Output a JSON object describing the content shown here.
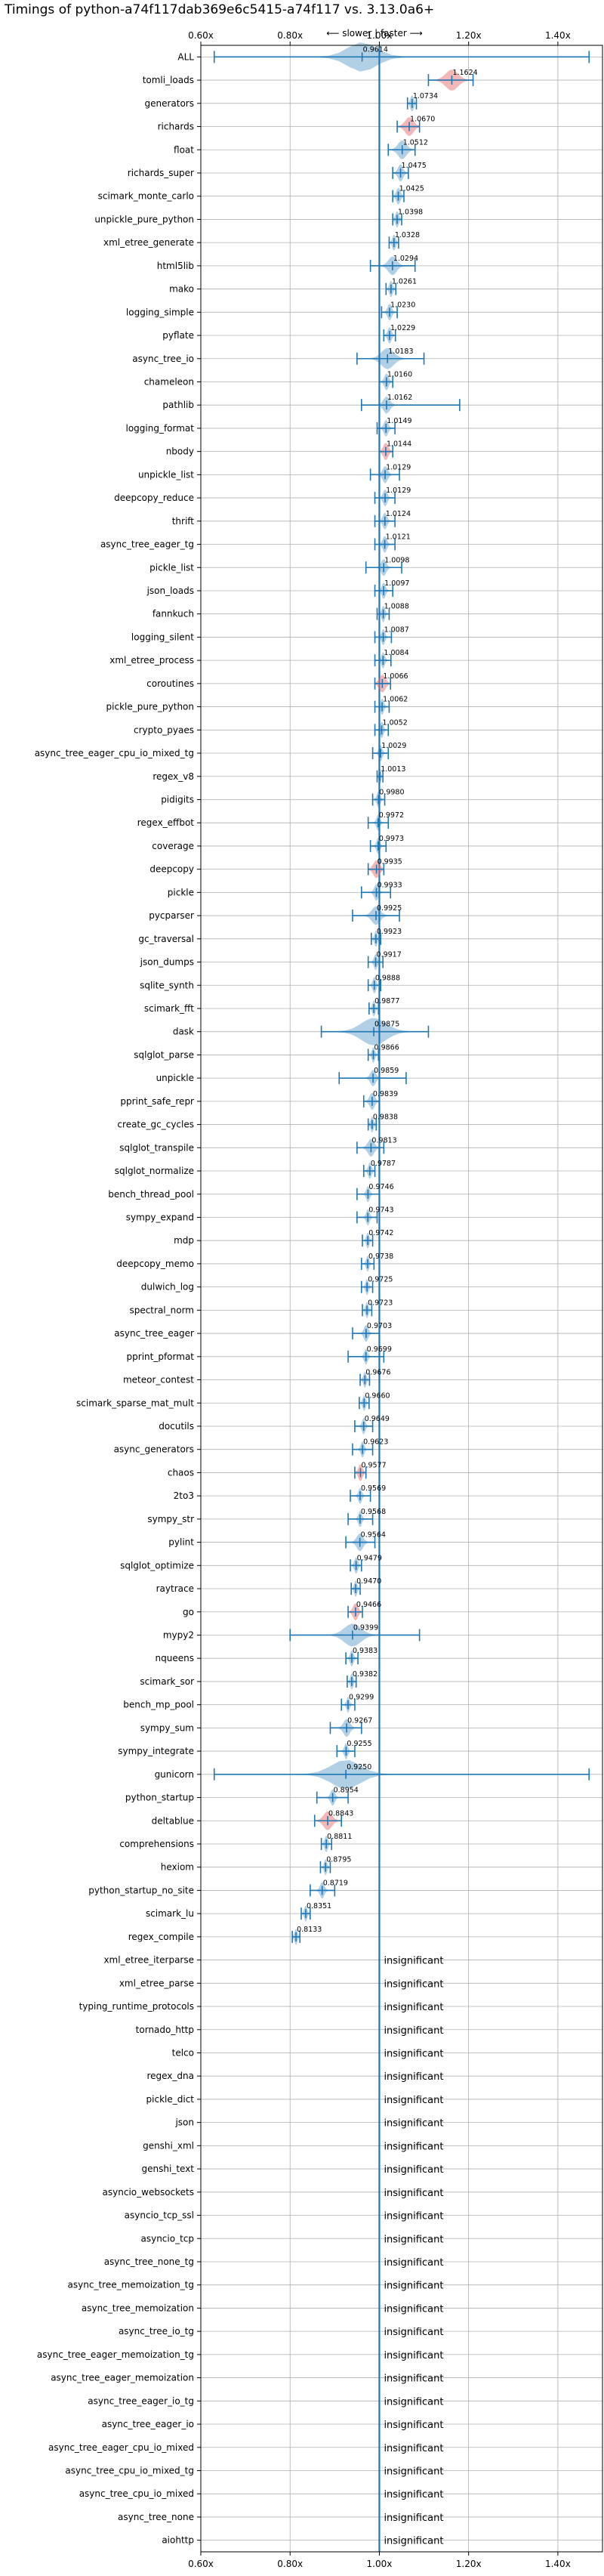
{
  "chart_data": {
    "type": "violin",
    "title": "Timings of python-a74f117dab369e6c5415-a74f117 vs. 3.13.0a6+",
    "direction_label": "⟵ slower | faster ⟶",
    "xlim": [
      0.6,
      1.5
    ],
    "xticks": [
      0.6,
      0.8,
      1.0,
      1.2,
      1.4
    ],
    "xtick_labels": [
      "0.60x",
      "0.80x",
      "1.00x",
      "1.20x",
      "1.40x"
    ],
    "grid": true,
    "insignificant_label": "insignificant",
    "colors": {
      "violin": "#1f77b4",
      "highlight": "#e8706f",
      "grid": "#b0b0b0",
      "baseline": "#1f77b4"
    },
    "benchmarks": [
      {
        "name": "ALL",
        "mean": 0.9614,
        "min": 0.63,
        "max": 1.47,
        "spread": 0.07,
        "color": "blue"
      },
      {
        "name": "tomli_loads",
        "mean": 1.1624,
        "min": 1.11,
        "max": 1.21,
        "spread": 0.03,
        "color": "red"
      },
      {
        "name": "generators",
        "mean": 1.0734,
        "min": 1.063,
        "max": 1.083,
        "spread": 0.008,
        "color": "blue"
      },
      {
        "name": "richards",
        "mean": 1.067,
        "min": 1.04,
        "max": 1.09,
        "spread": 0.02,
        "color": "red"
      },
      {
        "name": "float",
        "mean": 1.0512,
        "min": 1.02,
        "max": 1.08,
        "spread": 0.02,
        "color": "blue"
      },
      {
        "name": "richards_super",
        "mean": 1.0475,
        "min": 1.03,
        "max": 1.065,
        "spread": 0.012,
        "color": "blue"
      },
      {
        "name": "scimark_monte_carlo",
        "mean": 1.0425,
        "min": 1.03,
        "max": 1.055,
        "spread": 0.01,
        "color": "blue"
      },
      {
        "name": "unpickle_pure_python",
        "mean": 1.0398,
        "min": 1.03,
        "max": 1.05,
        "spread": 0.008,
        "color": "blue"
      },
      {
        "name": "xml_etree_generate",
        "mean": 1.0328,
        "min": 1.022,
        "max": 1.043,
        "spread": 0.008,
        "color": "blue"
      },
      {
        "name": "html5lib",
        "mean": 1.0294,
        "min": 0.98,
        "max": 1.08,
        "spread": 0.02,
        "color": "blue"
      },
      {
        "name": "mako",
        "mean": 1.0261,
        "min": 1.015,
        "max": 1.037,
        "spread": 0.008,
        "color": "blue"
      },
      {
        "name": "logging_simple",
        "mean": 1.023,
        "min": 1.005,
        "max": 1.04,
        "spread": 0.01,
        "color": "blue"
      },
      {
        "name": "pyflate",
        "mean": 1.0229,
        "min": 1.01,
        "max": 1.036,
        "spread": 0.009,
        "color": "blue"
      },
      {
        "name": "async_tree_io",
        "mean": 1.0183,
        "min": 0.95,
        "max": 1.1,
        "spread": 0.03,
        "color": "blue"
      },
      {
        "name": "chameleon",
        "mean": 1.016,
        "min": 1.0,
        "max": 1.03,
        "spread": 0.01,
        "color": "blue"
      },
      {
        "name": "pathlib",
        "mean": 1.0162,
        "min": 0.96,
        "max": 1.18,
        "spread": 0.015,
        "color": "blue"
      },
      {
        "name": "logging_format",
        "mean": 1.0149,
        "min": 0.995,
        "max": 1.035,
        "spread": 0.01,
        "color": "blue"
      },
      {
        "name": "nbody",
        "mean": 1.0144,
        "min": 1.0,
        "max": 1.03,
        "spread": 0.012,
        "color": "red"
      },
      {
        "name": "unpickle_list",
        "mean": 1.0129,
        "min": 0.98,
        "max": 1.045,
        "spread": 0.012,
        "color": "blue"
      },
      {
        "name": "deepcopy_reduce",
        "mean": 1.0129,
        "min": 0.99,
        "max": 1.035,
        "spread": 0.01,
        "color": "blue"
      },
      {
        "name": "thrift",
        "mean": 1.0124,
        "min": 0.99,
        "max": 1.035,
        "spread": 0.01,
        "color": "blue"
      },
      {
        "name": "async_tree_eager_tg",
        "mean": 1.0121,
        "min": 0.99,
        "max": 1.035,
        "spread": 0.01,
        "color": "blue"
      },
      {
        "name": "pickle_list",
        "mean": 1.0098,
        "min": 0.97,
        "max": 1.05,
        "spread": 0.012,
        "color": "blue"
      },
      {
        "name": "json_loads",
        "mean": 1.0097,
        "min": 0.99,
        "max": 1.03,
        "spread": 0.009,
        "color": "blue"
      },
      {
        "name": "fannkuch",
        "mean": 1.0088,
        "min": 0.995,
        "max": 1.022,
        "spread": 0.008,
        "color": "blue"
      },
      {
        "name": "logging_silent",
        "mean": 1.0087,
        "min": 0.99,
        "max": 1.027,
        "spread": 0.008,
        "color": "blue"
      },
      {
        "name": "xml_etree_process",
        "mean": 1.0084,
        "min": 0.99,
        "max": 1.026,
        "spread": 0.008,
        "color": "blue"
      },
      {
        "name": "coroutines",
        "mean": 1.0066,
        "min": 0.99,
        "max": 1.025,
        "spread": 0.015,
        "color": "red"
      },
      {
        "name": "pickle_pure_python",
        "mean": 1.0062,
        "min": 0.99,
        "max": 1.022,
        "spread": 0.008,
        "color": "blue"
      },
      {
        "name": "crypto_pyaes",
        "mean": 1.0052,
        "min": 0.99,
        "max": 1.02,
        "spread": 0.008,
        "color": "blue"
      },
      {
        "name": "async_tree_eager_cpu_io_mixed_tg",
        "mean": 1.0029,
        "min": 0.985,
        "max": 1.02,
        "spread": 0.008,
        "color": "blue"
      },
      {
        "name": "regex_v8",
        "mean": 1.0013,
        "min": 0.995,
        "max": 1.008,
        "spread": 0.005,
        "color": "blue"
      },
      {
        "name": "pidigits",
        "mean": 0.998,
        "min": 0.985,
        "max": 1.012,
        "spread": 0.008,
        "color": "blue"
      },
      {
        "name": "regex_effbot",
        "mean": 0.9972,
        "min": 0.975,
        "max": 1.02,
        "spread": 0.008,
        "color": "blue"
      },
      {
        "name": "coverage",
        "mean": 0.9973,
        "min": 0.98,
        "max": 1.015,
        "spread": 0.008,
        "color": "blue"
      },
      {
        "name": "deepcopy",
        "mean": 0.9935,
        "min": 0.975,
        "max": 1.01,
        "spread": 0.015,
        "color": "red"
      },
      {
        "name": "pickle",
        "mean": 0.9933,
        "min": 0.96,
        "max": 1.025,
        "spread": 0.01,
        "color": "blue"
      },
      {
        "name": "pycparser",
        "mean": 0.9925,
        "min": 0.94,
        "max": 1.045,
        "spread": 0.02,
        "color": "blue"
      },
      {
        "name": "gc_traversal",
        "mean": 0.9923,
        "min": 0.982,
        "max": 1.003,
        "spread": 0.007,
        "color": "blue"
      },
      {
        "name": "json_dumps",
        "mean": 0.9917,
        "min": 0.975,
        "max": 1.008,
        "spread": 0.008,
        "color": "blue"
      },
      {
        "name": "sqlite_synth",
        "mean": 0.9888,
        "min": 0.975,
        "max": 1.003,
        "spread": 0.008,
        "color": "blue"
      },
      {
        "name": "scimark_fft",
        "mean": 0.9877,
        "min": 0.977,
        "max": 0.998,
        "spread": 0.007,
        "color": "blue"
      },
      {
        "name": "dask",
        "mean": 0.9875,
        "min": 0.87,
        "max": 1.11,
        "spread": 0.06,
        "color": "blue"
      },
      {
        "name": "sqlglot_parse",
        "mean": 0.9866,
        "min": 0.975,
        "max": 0.998,
        "spread": 0.007,
        "color": "blue"
      },
      {
        "name": "unpickle",
        "mean": 0.9859,
        "min": 0.91,
        "max": 1.06,
        "spread": 0.012,
        "color": "blue"
      },
      {
        "name": "pprint_safe_repr",
        "mean": 0.9839,
        "min": 0.965,
        "max": 1.0,
        "spread": 0.012,
        "color": "blue"
      },
      {
        "name": "create_gc_cycles",
        "mean": 0.9838,
        "min": 0.975,
        "max": 0.993,
        "spread": 0.007,
        "color": "blue"
      },
      {
        "name": "sqlglot_transpile",
        "mean": 0.9813,
        "min": 0.95,
        "max": 1.01,
        "spread": 0.015,
        "color": "blue"
      },
      {
        "name": "sqlglot_normalize",
        "mean": 0.9787,
        "min": 0.965,
        "max": 0.99,
        "spread": 0.008,
        "color": "blue"
      },
      {
        "name": "bench_thread_pool",
        "mean": 0.9746,
        "min": 0.95,
        "max": 1.0,
        "spread": 0.008,
        "color": "blue"
      },
      {
        "name": "sympy_expand",
        "mean": 0.9743,
        "min": 0.95,
        "max": 0.995,
        "spread": 0.008,
        "color": "blue"
      },
      {
        "name": "mdp",
        "mean": 0.9742,
        "min": 0.962,
        "max": 0.985,
        "spread": 0.007,
        "color": "blue"
      },
      {
        "name": "deepcopy_memo",
        "mean": 0.9738,
        "min": 0.96,
        "max": 0.988,
        "spread": 0.007,
        "color": "blue"
      },
      {
        "name": "dulwich_log",
        "mean": 0.9725,
        "min": 0.96,
        "max": 0.985,
        "spread": 0.007,
        "color": "blue"
      },
      {
        "name": "spectral_norm",
        "mean": 0.9723,
        "min": 0.962,
        "max": 0.983,
        "spread": 0.007,
        "color": "blue"
      },
      {
        "name": "async_tree_eager",
        "mean": 0.9703,
        "min": 0.94,
        "max": 1.0,
        "spread": 0.01,
        "color": "blue"
      },
      {
        "name": "pprint_pformat",
        "mean": 0.9699,
        "min": 0.93,
        "max": 1.01,
        "spread": 0.008,
        "color": "blue"
      },
      {
        "name": "meteor_contest",
        "mean": 0.9676,
        "min": 0.957,
        "max": 0.978,
        "spread": 0.007,
        "color": "blue"
      },
      {
        "name": "scimark_sparse_mat_mult",
        "mean": 0.966,
        "min": 0.955,
        "max": 0.977,
        "spread": 0.007,
        "color": "blue"
      },
      {
        "name": "docutils",
        "mean": 0.9649,
        "min": 0.945,
        "max": 0.985,
        "spread": 0.008,
        "color": "blue"
      },
      {
        "name": "async_generators",
        "mean": 0.9623,
        "min": 0.94,
        "max": 0.985,
        "spread": 0.008,
        "color": "blue"
      },
      {
        "name": "chaos",
        "mean": 0.9577,
        "min": 0.945,
        "max": 0.97,
        "spread": 0.01,
        "color": "red"
      },
      {
        "name": "2to3",
        "mean": 0.9569,
        "min": 0.935,
        "max": 0.98,
        "spread": 0.008,
        "color": "blue"
      },
      {
        "name": "sympy_str",
        "mean": 0.9568,
        "min": 0.93,
        "max": 0.985,
        "spread": 0.008,
        "color": "blue"
      },
      {
        "name": "pylint",
        "mean": 0.9564,
        "min": 0.925,
        "max": 0.99,
        "spread": 0.015,
        "color": "blue"
      },
      {
        "name": "sqlglot_optimize",
        "mean": 0.9479,
        "min": 0.935,
        "max": 0.96,
        "spread": 0.008,
        "color": "blue"
      },
      {
        "name": "raytrace",
        "mean": 0.947,
        "min": 0.937,
        "max": 0.957,
        "spread": 0.007,
        "color": "blue"
      },
      {
        "name": "go",
        "mean": 0.9466,
        "min": 0.93,
        "max": 0.962,
        "spread": 0.012,
        "color": "red"
      },
      {
        "name": "mypy2",
        "mean": 0.9399,
        "min": 0.8,
        "max": 1.09,
        "spread": 0.04,
        "color": "blue"
      },
      {
        "name": "nqueens",
        "mean": 0.9383,
        "min": 0.925,
        "max": 0.952,
        "spread": 0.008,
        "color": "blue"
      },
      {
        "name": "scimark_sor",
        "mean": 0.9382,
        "min": 0.928,
        "max": 0.948,
        "spread": 0.007,
        "color": "blue"
      },
      {
        "name": "bench_mp_pool",
        "mean": 0.9299,
        "min": 0.915,
        "max": 0.945,
        "spread": 0.007,
        "color": "blue"
      },
      {
        "name": "sympy_sum",
        "mean": 0.9267,
        "min": 0.89,
        "max": 0.96,
        "spread": 0.015,
        "color": "blue"
      },
      {
        "name": "sympy_integrate",
        "mean": 0.9255,
        "min": 0.905,
        "max": 0.945,
        "spread": 0.008,
        "color": "blue"
      },
      {
        "name": "gunicorn",
        "mean": 0.925,
        "min": 0.63,
        "max": 1.47,
        "spread": 0.07,
        "color": "blue"
      },
      {
        "name": "python_startup",
        "mean": 0.8954,
        "min": 0.86,
        "max": 0.93,
        "spread": 0.01,
        "color": "blue"
      },
      {
        "name": "deltablue",
        "mean": 0.8843,
        "min": 0.855,
        "max": 0.915,
        "spread": 0.02,
        "color": "red"
      },
      {
        "name": "comprehensions",
        "mean": 0.8811,
        "min": 0.87,
        "max": 0.893,
        "spread": 0.008,
        "color": "blue"
      },
      {
        "name": "hexiom",
        "mean": 0.8795,
        "min": 0.868,
        "max": 0.89,
        "spread": 0.007,
        "color": "blue"
      },
      {
        "name": "python_startup_no_site",
        "mean": 0.8719,
        "min": 0.845,
        "max": 0.9,
        "spread": 0.01,
        "color": "blue"
      },
      {
        "name": "scimark_lu",
        "mean": 0.8351,
        "min": 0.825,
        "max": 0.845,
        "spread": 0.007,
        "color": "blue"
      },
      {
        "name": "regex_compile",
        "mean": 0.8133,
        "min": 0.805,
        "max": 0.822,
        "spread": 0.007,
        "color": "blue"
      },
      {
        "name": "xml_etree_iterparse",
        "insignificant": true
      },
      {
        "name": "xml_etree_parse",
        "insignificant": true
      },
      {
        "name": "typing_runtime_protocols",
        "insignificant": true
      },
      {
        "name": "tornado_http",
        "insignificant": true
      },
      {
        "name": "telco",
        "insignificant": true
      },
      {
        "name": "regex_dna",
        "insignificant": true
      },
      {
        "name": "pickle_dict",
        "insignificant": true
      },
      {
        "name": "json",
        "insignificant": true
      },
      {
        "name": "genshi_xml",
        "insignificant": true
      },
      {
        "name": "genshi_text",
        "insignificant": true
      },
      {
        "name": "asyncio_websockets",
        "insignificant": true
      },
      {
        "name": "asyncio_tcp_ssl",
        "insignificant": true
      },
      {
        "name": "asyncio_tcp",
        "insignificant": true
      },
      {
        "name": "async_tree_none_tg",
        "insignificant": true
      },
      {
        "name": "async_tree_memoization_tg",
        "insignificant": true
      },
      {
        "name": "async_tree_memoization",
        "insignificant": true
      },
      {
        "name": "async_tree_io_tg",
        "insignificant": true
      },
      {
        "name": "async_tree_eager_memoization_tg",
        "insignificant": true
      },
      {
        "name": "async_tree_eager_memoization",
        "insignificant": true
      },
      {
        "name": "async_tree_eager_io_tg",
        "insignificant": true
      },
      {
        "name": "async_tree_eager_io",
        "insignificant": true
      },
      {
        "name": "async_tree_eager_cpu_io_mixed",
        "insignificant": true
      },
      {
        "name": "async_tree_cpu_io_mixed_tg",
        "insignificant": true
      },
      {
        "name": "async_tree_cpu_io_mixed",
        "insignificant": true
      },
      {
        "name": "async_tree_none",
        "insignificant": true
      },
      {
        "name": "aiohttp",
        "insignificant": true
      }
    ]
  }
}
